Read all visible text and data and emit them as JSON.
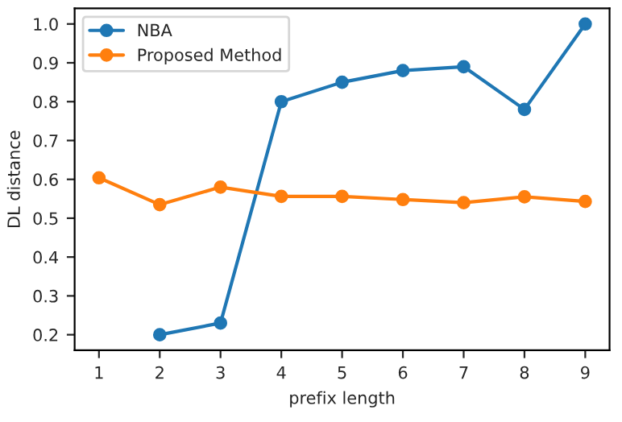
{
  "chart_data": {
    "type": "line",
    "xlabel": "prefix length",
    "ylabel": "DL distance",
    "x": [
      1,
      2,
      3,
      4,
      5,
      6,
      7,
      8,
      9
    ],
    "series": [
      {
        "name": "NBA",
        "color": "#1f77b4",
        "values": [
          null,
          0.2,
          0.23,
          0.8,
          0.85,
          0.88,
          0.89,
          0.78,
          1.0
        ]
      },
      {
        "name": "Proposed Method",
        "color": "#ff7f0e",
        "values": [
          0.604,
          0.535,
          0.58,
          0.556,
          0.556,
          0.548,
          0.54,
          0.555,
          0.543
        ]
      }
    ],
    "xlim": [
      0.6,
      9.4
    ],
    "xticks": [
      1,
      2,
      3,
      4,
      5,
      6,
      7,
      8,
      9
    ],
    "ylim": [
      0.16,
      1.04
    ],
    "yticks": [
      0.2,
      0.3,
      0.4,
      0.5,
      0.6,
      0.7,
      0.8,
      0.9,
      {
        "value": 1,
        "label": "1.0"
      }
    ],
    "marker": "circle",
    "line_style": "solid",
    "legend": "top left",
    "grid": false
  }
}
